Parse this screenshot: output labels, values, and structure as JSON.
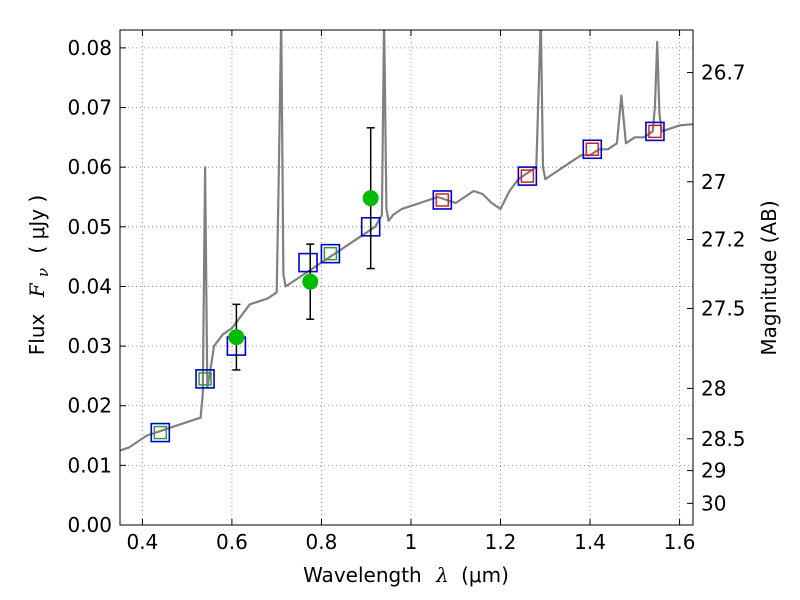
{
  "chart_data": {
    "type": "scatter",
    "title": "",
    "xlabel": "Wavelength",
    "xlabel_symbol": "λ",
    "xlabel_unit": "(μm)",
    "ylabel": "Flux",
    "ylabel_symbol": "F",
    "ylabel_subscript": "ν",
    "ylabel_unit": "( μJy )",
    "ylabel_right": "Magnitude (AB)",
    "xlim": [
      0.35,
      1.63
    ],
    "ylim": [
      0.0,
      0.083
    ],
    "grid": true,
    "x_ticks": [
      0.4,
      0.6,
      0.8,
      1.0,
      1.2,
      1.4,
      1.6
    ],
    "x_tick_labels": [
      "0.4",
      "0.6",
      "0.8",
      "1",
      "1.2",
      "1.4",
      "1.6"
    ],
    "y_ticks": [
      0.0,
      0.01,
      0.02,
      0.03,
      0.04,
      0.05,
      0.06,
      0.07,
      0.08
    ],
    "y_tick_labels": [
      "0.00",
      "0.01",
      "0.02",
      "0.03",
      "0.04",
      "0.05",
      "0.06",
      "0.07",
      "0.08"
    ],
    "right_ticks": [
      {
        "label": "26.7",
        "mag": 26.7
      },
      {
        "label": "27",
        "mag": 27.0
      },
      {
        "label": "27.2",
        "mag": 27.2
      },
      {
        "label": "27.5",
        "mag": 27.5
      },
      {
        "label": "28",
        "mag": 28.0
      },
      {
        "label": "28.5",
        "mag": 28.5
      },
      {
        "label": "29",
        "mag": 29.0
      },
      {
        "label": "30",
        "mag": 30.0
      }
    ],
    "colors": {
      "spectrum": "#808080",
      "model_boxes": "#0000cc",
      "green_boxes": "#2e9e2e",
      "red_boxes": "#cc2222",
      "observed_points": "#00bb00",
      "errorbars": "#000000",
      "grid": "#808080"
    },
    "series": [
      {
        "kind": "spectrum",
        "x": [
          0.35,
          0.37,
          0.39,
          0.41,
          0.43,
          0.45,
          0.47,
          0.49,
          0.51,
          0.53,
          0.535,
          0.54,
          0.545,
          0.55,
          0.56,
          0.58,
          0.6,
          0.62,
          0.64,
          0.66,
          0.68,
          0.7,
          0.705,
          0.71,
          0.715,
          0.72,
          0.74,
          0.76,
          0.78,
          0.8,
          0.82,
          0.84,
          0.86,
          0.88,
          0.9,
          0.92,
          0.935,
          0.94,
          0.945,
          0.95,
          0.96,
          0.98,
          1.0,
          1.02,
          1.04,
          1.06,
          1.08,
          1.1,
          1.12,
          1.14,
          1.16,
          1.18,
          1.2,
          1.22,
          1.24,
          1.26,
          1.28,
          1.29,
          1.295,
          1.3,
          1.32,
          1.34,
          1.36,
          1.38,
          1.4,
          1.42,
          1.44,
          1.46,
          1.47,
          1.48,
          1.5,
          1.52,
          1.54,
          1.545,
          1.55,
          1.555,
          1.56,
          1.58,
          1.6,
          1.63
        ],
        "y": [
          0.0125,
          0.013,
          0.014,
          0.015,
          0.0155,
          0.016,
          0.0165,
          0.017,
          0.0175,
          0.018,
          0.022,
          0.06,
          0.023,
          0.025,
          0.03,
          0.032,
          0.033,
          0.035,
          0.037,
          0.0375,
          0.038,
          0.039,
          0.06,
          0.085,
          0.042,
          0.04,
          0.041,
          0.042,
          0.043,
          0.044,
          0.045,
          0.046,
          0.047,
          0.048,
          0.049,
          0.05,
          0.052,
          0.085,
          0.053,
          0.051,
          0.052,
          0.053,
          0.0535,
          0.054,
          0.0545,
          0.055,
          0.0545,
          0.054,
          0.055,
          0.056,
          0.0555,
          0.054,
          0.053,
          0.056,
          0.058,
          0.059,
          0.06,
          0.085,
          0.06,
          0.058,
          0.059,
          0.06,
          0.061,
          0.062,
          0.062,
          0.063,
          0.063,
          0.064,
          0.072,
          0.064,
          0.065,
          0.065,
          0.066,
          0.07,
          0.081,
          0.069,
          0.066,
          0.0665,
          0.067,
          0.0672
        ]
      },
      {
        "kind": "model_boxes",
        "x": [
          0.44,
          0.54,
          0.61,
          0.77,
          0.82,
          0.91,
          1.07,
          1.26,
          1.405,
          1.545
        ],
        "y": [
          0.0155,
          0.0245,
          0.03,
          0.044,
          0.0455,
          0.05,
          0.0545,
          0.0585,
          0.063,
          0.066
        ]
      },
      {
        "kind": "green_boxes",
        "x": [
          0.44,
          0.54,
          0.82
        ],
        "y": [
          0.0155,
          0.0245,
          0.0455
        ]
      },
      {
        "kind": "red_boxes",
        "x": [
          1.07,
          1.26,
          1.405,
          1.545
        ],
        "y": [
          0.0545,
          0.0585,
          0.063,
          0.066
        ]
      },
      {
        "kind": "observed_points",
        "x": [
          0.61,
          0.775,
          0.91
        ],
        "y": [
          0.0315,
          0.0408,
          0.0548
        ],
        "err_low": [
          0.0055,
          0.0063,
          0.0118
        ],
        "err_high": [
          0.0055,
          0.0063,
          0.0118
        ]
      }
    ]
  }
}
